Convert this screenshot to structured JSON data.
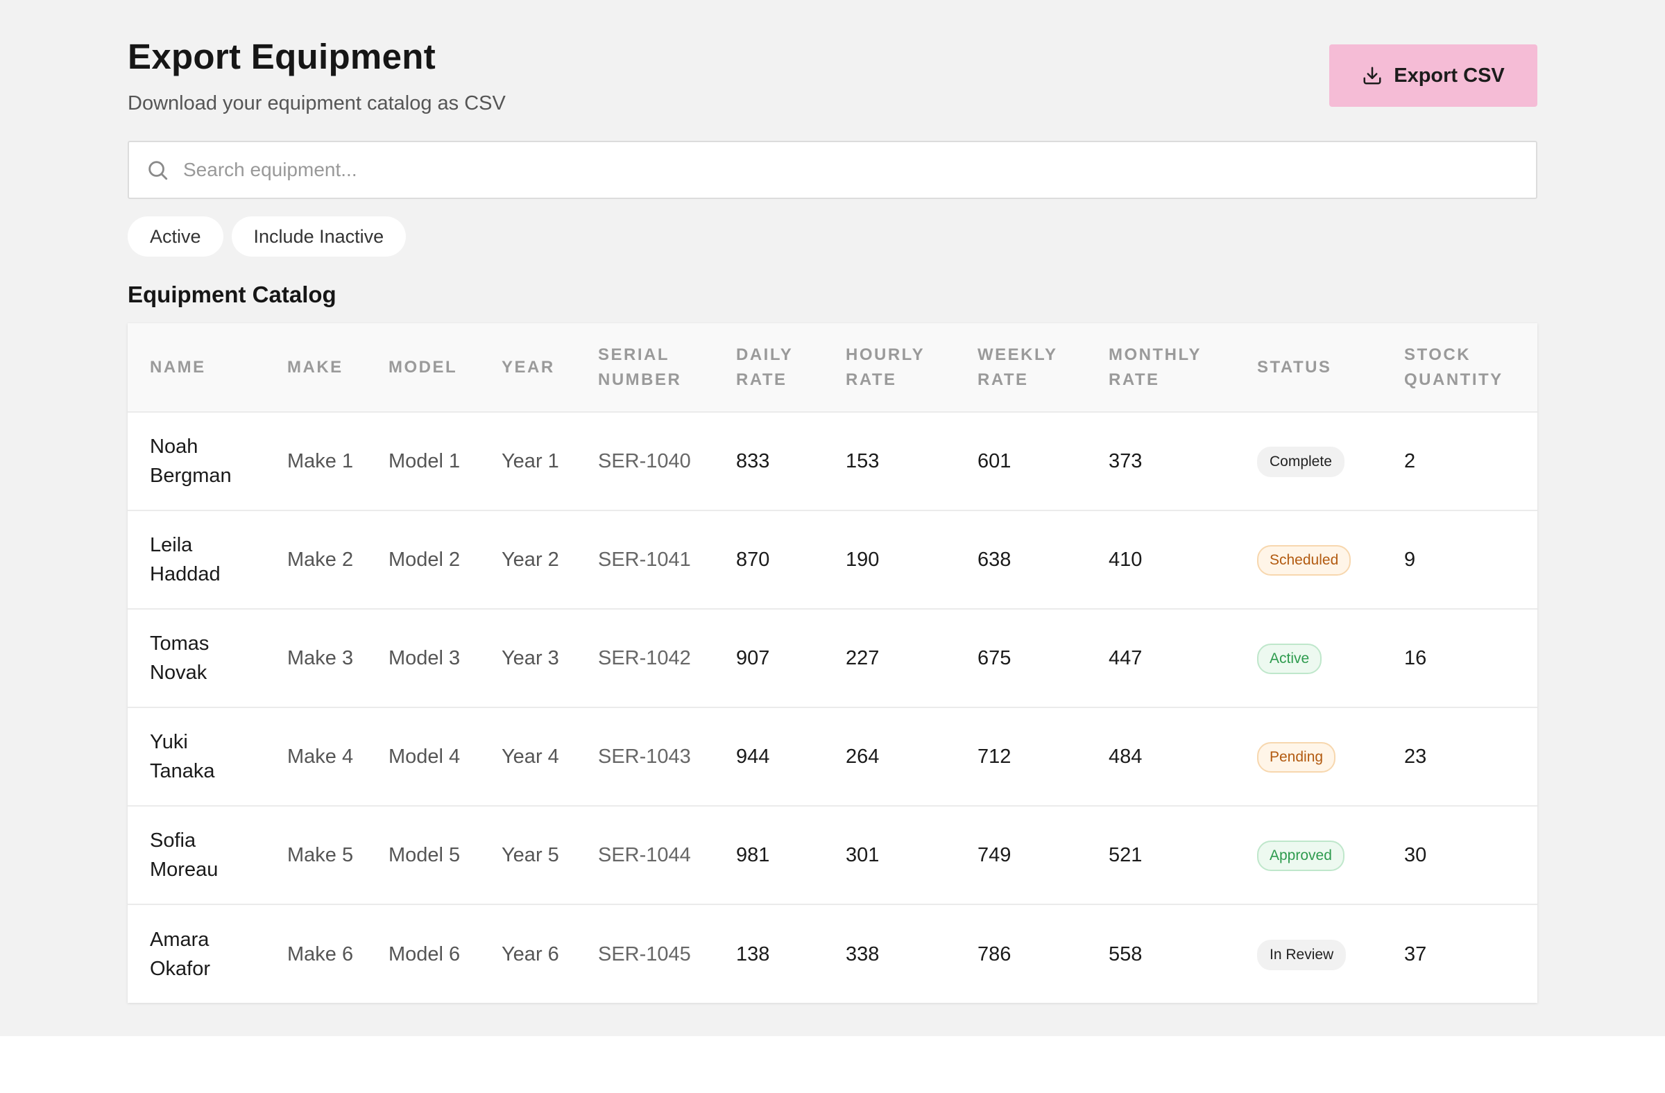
{
  "header": {
    "title": "Export Equipment",
    "subtitle": "Download your equipment catalog as CSV",
    "export_label": "Export CSV"
  },
  "search": {
    "placeholder": "Search equipment..."
  },
  "filters": {
    "active_label": "Active",
    "include_inactive_label": "Include Inactive"
  },
  "catalog": {
    "title": "Equipment Catalog",
    "columns": [
      "Name",
      "Make",
      "Model",
      "Year",
      "Serial Number",
      "Daily Rate",
      "Hourly Rate",
      "Weekly Rate",
      "Monthly Rate",
      "Status",
      "Stock Quantity"
    ],
    "rows": [
      {
        "name": "Noah Bergman",
        "make": "Make 1",
        "model": "Model 1",
        "year": "Year 1",
        "serial": "SER-1040",
        "daily": "833",
        "hourly": "153",
        "weekly": "601",
        "monthly": "373",
        "status": "Complete",
        "status_tone": "neutral",
        "stock": "2"
      },
      {
        "name": "Leila Haddad",
        "make": "Make 2",
        "model": "Model 2",
        "year": "Year 2",
        "serial": "SER-1041",
        "daily": "870",
        "hourly": "190",
        "weekly": "638",
        "monthly": "410",
        "status": "Scheduled",
        "status_tone": "orange",
        "stock": "9"
      },
      {
        "name": "Tomas Novak",
        "make": "Make 3",
        "model": "Model 3",
        "year": "Year 3",
        "serial": "SER-1042",
        "daily": "907",
        "hourly": "227",
        "weekly": "675",
        "monthly": "447",
        "status": "Active",
        "status_tone": "green",
        "stock": "16"
      },
      {
        "name": "Yuki Tanaka",
        "make": "Make 4",
        "model": "Model 4",
        "year": "Year 4",
        "serial": "SER-1043",
        "daily": "944",
        "hourly": "264",
        "weekly": "712",
        "monthly": "484",
        "status": "Pending",
        "status_tone": "orange",
        "stock": "23"
      },
      {
        "name": "Sofia Moreau",
        "make": "Make 5",
        "model": "Model 5",
        "year": "Year 5",
        "serial": "SER-1044",
        "daily": "981",
        "hourly": "301",
        "weekly": "749",
        "monthly": "521",
        "status": "Approved",
        "status_tone": "green",
        "stock": "30"
      },
      {
        "name": "Amara Okafor",
        "make": "Make 6",
        "model": "Model 6",
        "year": "Year 6",
        "serial": "SER-1045",
        "daily": "138",
        "hourly": "338",
        "weekly": "786",
        "monthly": "558",
        "status": "In Review",
        "status_tone": "neutral",
        "stock": "37"
      }
    ]
  },
  "icons": {
    "export": "download-icon",
    "search": "search-icon"
  },
  "colors": {
    "export_button": "#f5bcd6",
    "page_background": "#f2f2f2"
  }
}
